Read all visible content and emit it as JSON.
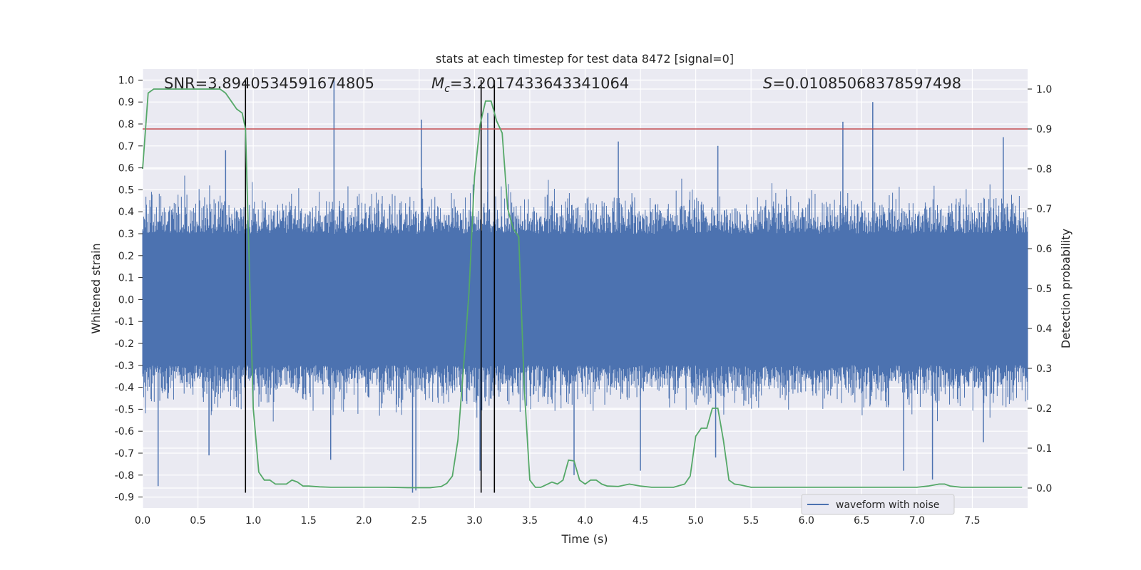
{
  "chart_data": {
    "type": "line",
    "title": "stats at each timestep for test data 8472 [signal=0]",
    "xlabel": "Time (s)",
    "ylabel": "Whitened strain",
    "ylabel_right": "Detection probability",
    "xlim": [
      0,
      8
    ],
    "ylim": [
      -0.95,
      1.05
    ],
    "ylim_right": [
      -0.05,
      1.05
    ],
    "grid": true,
    "x_ticks": [
      "0.0",
      "0.5",
      "1.0",
      "1.5",
      "2.0",
      "2.5",
      "3.0",
      "3.5",
      "4.0",
      "4.5",
      "5.0",
      "5.5",
      "6.0",
      "6.5",
      "7.0",
      "7.5"
    ],
    "y_ticks": [
      "1.0",
      "0.9",
      "0.8",
      "0.7",
      "0.6",
      "0.5",
      "0.4",
      "0.3",
      "0.2",
      "0.1",
      "0.0",
      "-0.1",
      "-0.2",
      "-0.3",
      "-0.4",
      "-0.5",
      "-0.6",
      "-0.7",
      "-0.8",
      "-0.9"
    ],
    "y_ticks_right": [
      "1.0",
      "0.9",
      "0.8",
      "0.7",
      "0.6",
      "0.5",
      "0.4",
      "0.3",
      "0.2",
      "0.1",
      "0.0"
    ],
    "annotations": {
      "snr": "SNR=3.8940534591674805",
      "mc_prefix": "M",
      "mc_sub": "c",
      "mc_value": "=3.2017433643341064",
      "s_prefix": "S",
      "s_value": "=0.010850683785974 98"
    },
    "threshold_right": 0.9,
    "vertical_lines_x": [
      0.93,
      3.06,
      3.18
    ],
    "series": [
      {
        "name": "waveform with noise",
        "color": "#4c72b0",
        "axis": "left",
        "description": "noisy whitened strain, band approx -0.45..0.45 with spikes",
        "spikes": [
          {
            "x": 0.14,
            "y": -0.85
          },
          {
            "x": 0.6,
            "y": -0.71
          },
          {
            "x": 0.75,
            "y": 0.68
          },
          {
            "x": 1.73,
            "y": 1.0
          },
          {
            "x": 1.7,
            "y": -0.73
          },
          {
            "x": 2.44,
            "y": -0.88
          },
          {
            "x": 2.52,
            "y": 0.82
          },
          {
            "x": 2.47,
            "y": -0.87
          },
          {
            "x": 3.12,
            "y": 0.85
          },
          {
            "x": 3.05,
            "y": -0.78
          },
          {
            "x": 3.9,
            "y": -0.8
          },
          {
            "x": 4.3,
            "y": 0.72
          },
          {
            "x": 4.5,
            "y": -0.78
          },
          {
            "x": 5.2,
            "y": 0.7
          },
          {
            "x": 5.18,
            "y": -0.72
          },
          {
            "x": 6.33,
            "y": 0.81
          },
          {
            "x": 6.6,
            "y": 0.9
          },
          {
            "x": 6.88,
            "y": -0.78
          },
          {
            "x": 7.14,
            "y": -0.82
          },
          {
            "x": 7.78,
            "y": 0.74
          },
          {
            "x": 7.6,
            "y": -0.65
          }
        ]
      },
      {
        "name": "detection probability",
        "color": "#55a868",
        "axis": "right",
        "x": [
          0.0,
          0.05,
          0.1,
          0.2,
          0.3,
          0.4,
          0.5,
          0.6,
          0.7,
          0.75,
          0.8,
          0.85,
          0.9,
          0.93,
          0.96,
          1.0,
          1.05,
          1.1,
          1.15,
          1.2,
          1.25,
          1.3,
          1.35,
          1.4,
          1.45,
          1.5,
          1.6,
          1.7,
          1.8,
          2.0,
          2.2,
          2.4,
          2.5,
          2.6,
          2.7,
          2.75,
          2.8,
          2.85,
          2.9,
          2.95,
          3.0,
          3.05,
          3.1,
          3.15,
          3.2,
          3.25,
          3.3,
          3.35,
          3.4,
          3.45,
          3.5,
          3.55,
          3.6,
          3.7,
          3.75,
          3.8,
          3.85,
          3.9,
          3.95,
          4.0,
          4.05,
          4.1,
          4.15,
          4.2,
          4.3,
          4.4,
          4.5,
          4.6,
          4.7,
          4.8,
          4.9,
          4.95,
          5.0,
          5.05,
          5.1,
          5.15,
          5.2,
          5.25,
          5.3,
          5.35,
          5.4,
          5.5,
          5.6,
          5.8,
          6.0,
          6.2,
          6.5,
          6.8,
          7.0,
          7.1,
          7.2,
          7.25,
          7.3,
          7.4,
          7.6,
          7.8,
          7.95
        ],
        "y": [
          0.8,
          0.99,
          1.0,
          1.0,
          1.0,
          1.0,
          1.0,
          1.0,
          1.0,
          0.99,
          0.97,
          0.95,
          0.94,
          0.9,
          0.6,
          0.2,
          0.04,
          0.02,
          0.02,
          0.01,
          0.01,
          0.01,
          0.02,
          0.015,
          0.005,
          0.005,
          0.003,
          0.002,
          0.002,
          0.002,
          0.002,
          0.001,
          0.001,
          0.001,
          0.004,
          0.012,
          0.03,
          0.12,
          0.3,
          0.49,
          0.78,
          0.91,
          0.97,
          0.97,
          0.92,
          0.89,
          0.7,
          0.65,
          0.63,
          0.25,
          0.02,
          0.002,
          0.002,
          0.015,
          0.01,
          0.02,
          0.07,
          0.068,
          0.02,
          0.01,
          0.02,
          0.02,
          0.01,
          0.005,
          0.004,
          0.01,
          0.005,
          0.002,
          0.002,
          0.002,
          0.01,
          0.03,
          0.13,
          0.15,
          0.15,
          0.2,
          0.2,
          0.12,
          0.02,
          0.01,
          0.008,
          0.002,
          0.002,
          0.002,
          0.002,
          0.002,
          0.002,
          0.002,
          0.002,
          0.005,
          0.01,
          0.01,
          0.005,
          0.002,
          0.002,
          0.002,
          0.002
        ]
      },
      {
        "name": "threshold",
        "color": "#c44e52",
        "axis": "right",
        "y": 0.9
      }
    ],
    "legend": {
      "location": "lower-right",
      "entries": [
        "waveform with noise"
      ]
    }
  }
}
